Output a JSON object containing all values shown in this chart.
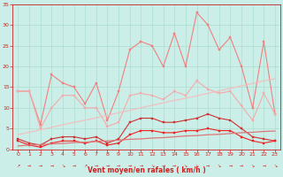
{
  "x": [
    0,
    1,
    2,
    3,
    4,
    5,
    6,
    7,
    8,
    9,
    10,
    11,
    12,
    13,
    14,
    15,
    16,
    17,
    18,
    19,
    20,
    21,
    22,
    23
  ],
  "series": [
    {
      "name": "max_rafales",
      "color": "#f08080",
      "linewidth": 0.8,
      "marker": "s",
      "markersize": 2.0,
      "values": [
        14.0,
        14.0,
        6.0,
        18.0,
        16.0,
        15.0,
        11.0,
        16.0,
        7.0,
        14.0,
        24.0,
        26.0,
        25.0,
        20.0,
        28.0,
        20.0,
        33.0,
        30.0,
        24.0,
        27.0,
        20.0,
        10.0,
        26.0,
        8.5
      ]
    },
    {
      "name": "mean_rafales",
      "color": "#f4aaaa",
      "linewidth": 0.8,
      "marker": "s",
      "markersize": 2.0,
      "values": [
        14.0,
        14.0,
        5.0,
        10.0,
        13.0,
        13.0,
        10.0,
        10.0,
        5.5,
        6.5,
        13.0,
        13.5,
        13.0,
        12.0,
        14.0,
        13.0,
        16.5,
        14.5,
        13.5,
        14.0,
        10.5,
        7.0,
        13.5,
        8.5
      ]
    },
    {
      "name": "max_vent",
      "color": "#cc3333",
      "linewidth": 0.8,
      "marker": "s",
      "markersize": 2.0,
      "values": [
        2.5,
        1.5,
        1.0,
        2.5,
        3.0,
        3.0,
        2.5,
        3.0,
        1.5,
        2.5,
        6.5,
        7.5,
        7.5,
        6.5,
        6.5,
        7.0,
        7.5,
        8.5,
        7.5,
        7.0,
        5.0,
        3.0,
        2.5,
        2.0
      ]
    },
    {
      "name": "mean_vent",
      "color": "#ee2222",
      "linewidth": 0.8,
      "marker": "s",
      "markersize": 2.0,
      "values": [
        2.0,
        1.0,
        0.5,
        1.5,
        2.0,
        2.0,
        1.5,
        2.0,
        1.0,
        1.5,
        3.5,
        4.5,
        4.5,
        4.0,
        4.0,
        4.5,
        4.5,
        5.0,
        4.5,
        4.5,
        3.0,
        2.0,
        1.5,
        2.0
      ]
    },
    {
      "name": "trend_rafales",
      "color": "#f0c0c0",
      "linewidth": 0.9,
      "marker": null,
      "values": [
        3.5,
        4.1,
        4.7,
        5.3,
        5.9,
        6.5,
        7.0,
        7.6,
        8.2,
        8.8,
        9.4,
        10.0,
        10.6,
        11.2,
        11.8,
        12.3,
        12.9,
        13.5,
        14.1,
        14.7,
        15.3,
        15.9,
        16.5,
        17.0
      ]
    },
    {
      "name": "trend_vent",
      "color": "#dd7777",
      "linewidth": 0.9,
      "marker": null,
      "values": [
        0.8,
        1.0,
        1.1,
        1.3,
        1.4,
        1.6,
        1.7,
        1.9,
        2.0,
        2.2,
        2.4,
        2.5,
        2.7,
        2.8,
        3.0,
        3.2,
        3.3,
        3.5,
        3.6,
        3.8,
        4.0,
        4.1,
        4.3,
        4.4
      ]
    }
  ],
  "xlabel": "Vent moyen/en rafales ( km/h )",
  "ylim": [
    0,
    35
  ],
  "yticks": [
    0,
    5,
    10,
    15,
    20,
    25,
    30,
    35
  ],
  "xlim": [
    -0.5,
    23.5
  ],
  "xticks": [
    0,
    1,
    2,
    3,
    4,
    5,
    6,
    7,
    8,
    9,
    10,
    11,
    12,
    13,
    14,
    15,
    16,
    17,
    18,
    19,
    20,
    21,
    22,
    23
  ],
  "bg_color": "#cceee8",
  "grid_color": "#aaddcc",
  "tick_color": "#cc2222",
  "xlabel_color": "#cc2222",
  "wind_dirs_angle": [
    225,
    270,
    270,
    270,
    315,
    270,
    225,
    270,
    270,
    270,
    270,
    270,
    315,
    270,
    270,
    315,
    315,
    270,
    315,
    270,
    270,
    315,
    270,
    315
  ]
}
